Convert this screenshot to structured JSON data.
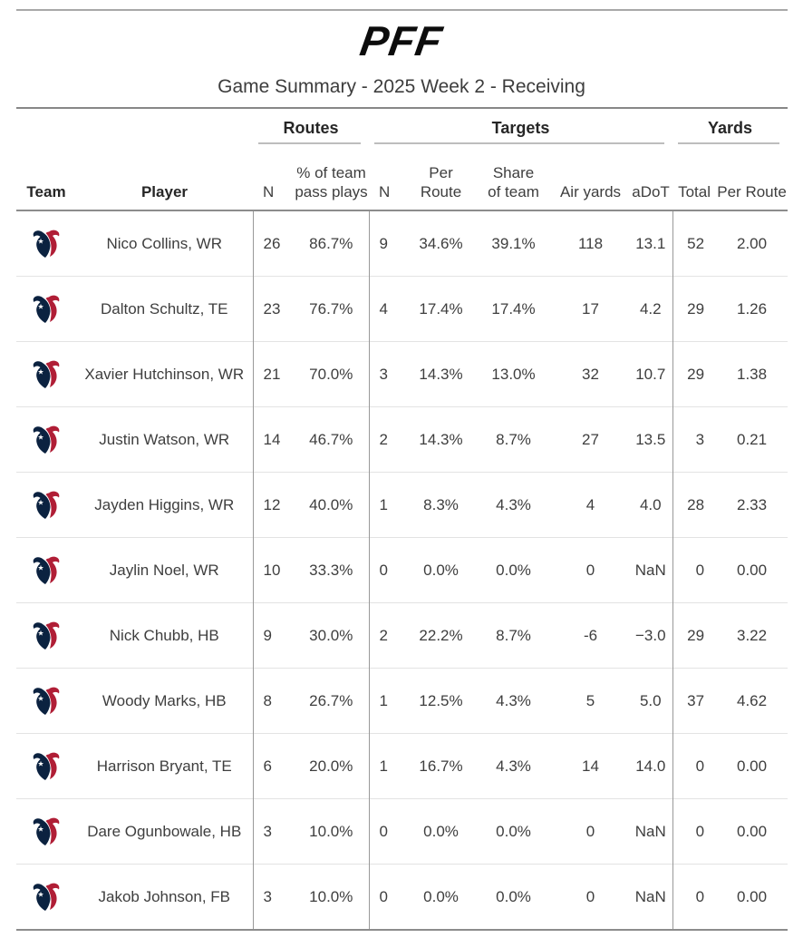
{
  "page": {
    "brand_text": "PFF",
    "title": "Game Summary - 2025 Week 2 - Receiving"
  },
  "colors": {
    "texans_navy": "#0b2240",
    "texans_red": "#b01e36",
    "star_white": "#ffffff",
    "logo_black": "#0c0c0c",
    "table_border": "#8c8c8c",
    "column_divider": "#999999",
    "row_separator": "#e3e3e3",
    "group_underline": "#bdbdbd",
    "text": "#3e3e3e",
    "title_text": "#3d3d3d"
  },
  "table_header": {
    "group_routes": "Routes",
    "group_targets": "Targets",
    "group_yards": "Yards",
    "team": "Team",
    "player": "Player",
    "routes_n": "N",
    "routes_pct_line1": "% of team",
    "routes_pct_line2": "pass plays",
    "targets_n": "N",
    "targets_per_route": "Per Route",
    "share_line1": "Share",
    "share_line2": "of team",
    "air_yards": "Air yards",
    "adot": "aDoT",
    "total": "Total",
    "yards_per_route": "Per Route"
  },
  "chart_data": {
    "type": "table",
    "title": "Game Summary - 2025 Week 2 - Receiving",
    "column_groups": [
      {
        "label": "Routes",
        "columns": [
          "N",
          "% of team pass plays"
        ]
      },
      {
        "label": "Targets",
        "columns": [
          "N",
          "Per Route",
          "Share of team",
          "Air yards",
          "aDoT"
        ]
      },
      {
        "label": "Yards",
        "columns": [
          "Total",
          "Per Route"
        ]
      }
    ],
    "team_logo": "houston-texans-logo",
    "rows": [
      {
        "team": "Houston Texans",
        "player": "Nico Collins, WR",
        "routes_n": "26",
        "routes_pct": "86.7%",
        "targets_n": "9",
        "per_route": "34.6%",
        "share": "39.1%",
        "air_yards": "118",
        "adot": "13.1",
        "total": "52",
        "yards_per_route": "2.00"
      },
      {
        "team": "Houston Texans",
        "player": "Dalton Schultz, TE",
        "routes_n": "23",
        "routes_pct": "76.7%",
        "targets_n": "4",
        "per_route": "17.4%",
        "share": "17.4%",
        "air_yards": "17",
        "adot": "4.2",
        "total": "29",
        "yards_per_route": "1.26"
      },
      {
        "team": "Houston Texans",
        "player": "Xavier Hutchinson, WR",
        "routes_n": "21",
        "routes_pct": "70.0%",
        "targets_n": "3",
        "per_route": "14.3%",
        "share": "13.0%",
        "air_yards": "32",
        "adot": "10.7",
        "total": "29",
        "yards_per_route": "1.38"
      },
      {
        "team": "Houston Texans",
        "player": "Justin Watson, WR",
        "routes_n": "14",
        "routes_pct": "46.7%",
        "targets_n": "2",
        "per_route": "14.3%",
        "share": "8.7%",
        "air_yards": "27",
        "adot": "13.5",
        "total": "3",
        "yards_per_route": "0.21"
      },
      {
        "team": "Houston Texans",
        "player": "Jayden Higgins, WR",
        "routes_n": "12",
        "routes_pct": "40.0%",
        "targets_n": "1",
        "per_route": "8.3%",
        "share": "4.3%",
        "air_yards": "4",
        "adot": "4.0",
        "total": "28",
        "yards_per_route": "2.33"
      },
      {
        "team": "Houston Texans",
        "player": "Jaylin Noel, WR",
        "routes_n": "10",
        "routes_pct": "33.3%",
        "targets_n": "0",
        "per_route": "0.0%",
        "share": "0.0%",
        "air_yards": "0",
        "adot": "NaN",
        "total": "0",
        "yards_per_route": "0.00"
      },
      {
        "team": "Houston Texans",
        "player": "Nick Chubb, HB",
        "routes_n": "9",
        "routes_pct": "30.0%",
        "targets_n": "2",
        "per_route": "22.2%",
        "share": "8.7%",
        "air_yards": "-6",
        "adot": "−3.0",
        "total": "29",
        "yards_per_route": "3.22"
      },
      {
        "team": "Houston Texans",
        "player": "Woody Marks, HB",
        "routes_n": "8",
        "routes_pct": "26.7%",
        "targets_n": "1",
        "per_route": "12.5%",
        "share": "4.3%",
        "air_yards": "5",
        "adot": "5.0",
        "total": "37",
        "yards_per_route": "4.62"
      },
      {
        "team": "Houston Texans",
        "player": "Harrison Bryant, TE",
        "routes_n": "6",
        "routes_pct": "20.0%",
        "targets_n": "1",
        "per_route": "16.7%",
        "share": "4.3%",
        "air_yards": "14",
        "adot": "14.0",
        "total": "0",
        "yards_per_route": "0.00"
      },
      {
        "team": "Houston Texans",
        "player": "Dare Ogunbowale, HB",
        "routes_n": "3",
        "routes_pct": "10.0%",
        "targets_n": "0",
        "per_route": "0.0%",
        "share": "0.0%",
        "air_yards": "0",
        "adot": "NaN",
        "total": "0",
        "yards_per_route": "0.00"
      },
      {
        "team": "Houston Texans",
        "player": "Jakob Johnson, FB",
        "routes_n": "3",
        "routes_pct": "10.0%",
        "targets_n": "0",
        "per_route": "0.0%",
        "share": "0.0%",
        "air_yards": "0",
        "adot": "NaN",
        "total": "0",
        "yards_per_route": "0.00"
      }
    ]
  }
}
